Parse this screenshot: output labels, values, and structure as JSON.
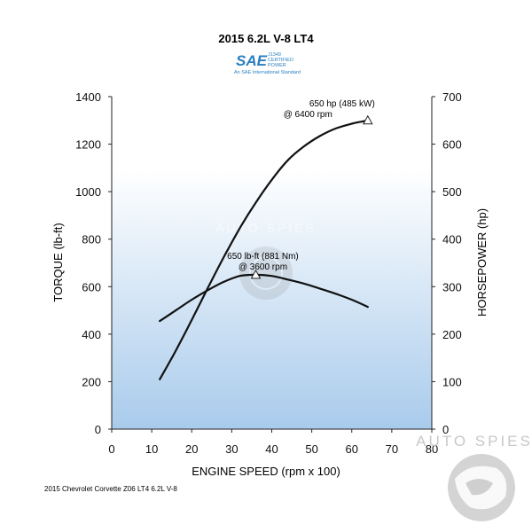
{
  "chart_data": {
    "type": "line",
    "title": "2015 6.2L V-8 LT4",
    "xlabel": "ENGINE SPEED (rpm x 100)",
    "ylabel_left": "TORQUE (lb-ft)",
    "ylabel_right": "HORSEPOWER (hp)",
    "xlim": [
      0,
      80
    ],
    "ylim_left": [
      0,
      1400
    ],
    "ylim_right": [
      0,
      700
    ],
    "x_ticks": [
      "0",
      "10",
      "20",
      "30",
      "40",
      "50",
      "60",
      "70",
      "80"
    ],
    "y_left_ticks": [
      "0",
      "200",
      "400",
      "600",
      "800",
      "1000",
      "1200",
      "1400"
    ],
    "y_right_ticks": [
      "0",
      "100",
      "200",
      "300",
      "400",
      "500",
      "600",
      "700"
    ],
    "grid": false,
    "series": [
      {
        "name": "TORQUE",
        "axis": "left",
        "x": [
          12,
          16,
          20,
          24,
          28,
          32,
          36,
          40,
          44,
          48,
          52,
          56,
          60,
          64
        ],
        "y": [
          455,
          500,
          545,
          585,
          620,
          645,
          650,
          645,
          630,
          613,
          592,
          570,
          545,
          515
        ]
      },
      {
        "name": "HORSEPOWER",
        "axis": "right",
        "x": [
          12,
          16,
          20,
          24,
          28,
          32,
          36,
          40,
          44,
          48,
          52,
          56,
          60,
          64
        ],
        "y": [
          105,
          165,
          230,
          297,
          362,
          423,
          477,
          525,
          566,
          595,
          617,
          633,
          643,
          650
        ]
      }
    ],
    "annotations": [
      {
        "line1": "650 hp (485 kW)",
        "line2": "@ 6400 rpm",
        "x": 64,
        "y": 650,
        "axis": "right"
      },
      {
        "line1": "650 lb-ft (881 Nm)",
        "line2": "@ 3600 rpm",
        "x": 36,
        "y": 650,
        "axis": "left"
      }
    ],
    "footnote": "2015 Chevrolet Corvette Z06 LT4 6.2L V-8"
  },
  "logo": {
    "name": "SAE",
    "lines": [
      "J1349",
      "CERTIFIED",
      "POWER"
    ],
    "tagline": "An SAE International Standard"
  },
  "watermark": "AUTO SPIES",
  "colors": {
    "line": "#111111",
    "plot_top": "#ffffff",
    "plot_bottom": "#a9cbec",
    "sae_blue": "#2a7fc0"
  }
}
